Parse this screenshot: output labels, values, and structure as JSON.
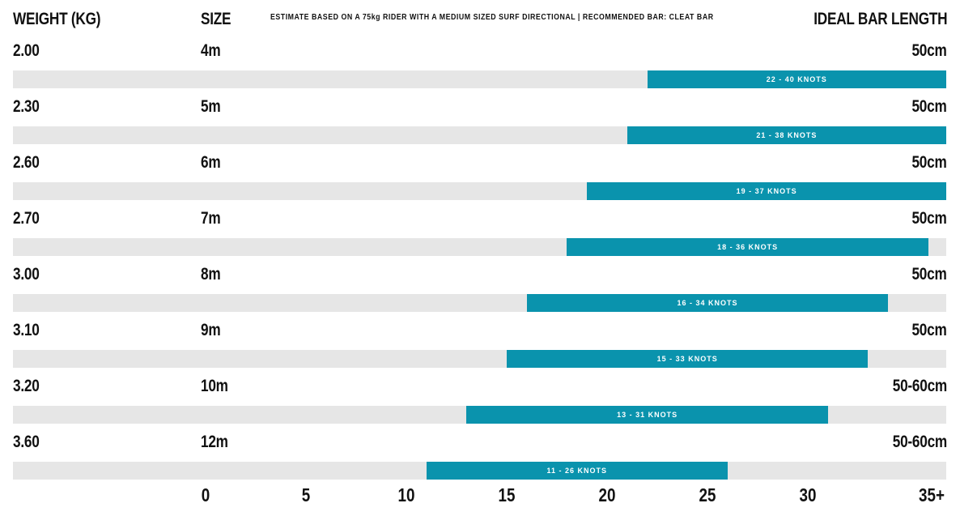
{
  "header": {
    "weight_label": "WEIGHT (KG)",
    "size_label": "SIZE",
    "note": "ESTIMATE BASED ON A 75kg RIDER WITH A MEDIUM SIZED SURF DIRECTIONAL  |  RECOMMENDED BAR: CLEAT BAR",
    "bar_length_label": "IDEAL BAR LENGTH"
  },
  "colors": {
    "range": "#0a93ad",
    "track": "#e6e6e6",
    "text": "#111111"
  },
  "chart_data": {
    "type": "bar",
    "orientation": "horizontal-range",
    "xlabel": "",
    "xlim": [
      0,
      35
    ],
    "x_ticks": [
      "0",
      "5",
      "10",
      "15",
      "20",
      "25",
      "30",
      "35+"
    ],
    "rows": [
      {
        "weight": "2.00",
        "size": "4m",
        "bar_length": "50cm",
        "min": 22,
        "max": 40,
        "label": "22 - 40 KNOTS"
      },
      {
        "weight": "2.30",
        "size": "5m",
        "bar_length": "50cm",
        "min": 21,
        "max": 38,
        "label": "21 - 38 KNOTS"
      },
      {
        "weight": "2.60",
        "size": "6m",
        "bar_length": "50cm",
        "min": 19,
        "max": 37,
        "label": "19 - 37 KNOTS"
      },
      {
        "weight": "2.70",
        "size": "7m",
        "bar_length": "50cm",
        "min": 18,
        "max": 36,
        "label": "18 - 36 KNOTS"
      },
      {
        "weight": "3.00",
        "size": "8m",
        "bar_length": "50cm",
        "min": 16,
        "max": 34,
        "label": "16 - 34 KNOTS"
      },
      {
        "weight": "3.10",
        "size": "9m",
        "bar_length": "50cm",
        "min": 15,
        "max": 33,
        "label": "15 - 33 KNOTS"
      },
      {
        "weight": "3.20",
        "size": "10m",
        "bar_length": "50-60cm",
        "min": 13,
        "max": 31,
        "label": "13 - 31 KNOTS"
      },
      {
        "weight": "3.60",
        "size": "12m",
        "bar_length": "50-60cm",
        "min": 11,
        "max": 26,
        "label": "11 - 26 KNOTS"
      }
    ]
  }
}
